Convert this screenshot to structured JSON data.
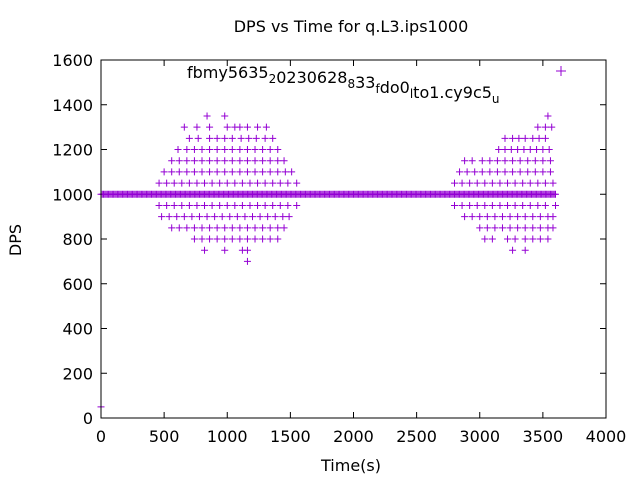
{
  "chart_data": {
    "type": "scatter",
    "title": "DPS vs Time for q.L3.ips1000",
    "xlabel": "Time(s)",
    "ylabel": "DPS",
    "xlim": [
      0,
      4000
    ],
    "ylim": [
      0,
      1600
    ],
    "xticks": [
      "0",
      "500",
      "1000",
      "1500",
      "2000",
      "2500",
      "3000",
      "3500",
      "4000"
    ],
    "yticks": [
      "0",
      "200",
      "400",
      "600",
      "800",
      "1000",
      "1200",
      "1400",
      "1600"
    ],
    "grid": false,
    "legend_position": "top-right",
    "marker": "+",
    "color": "#9400d3",
    "series": [
      {
        "name": "fbmy5635_20230628_8_33_fdo0_lto1.cy9c5_u",
        "legend_parts": [
          {
            "text": "fbmy5635",
            "sub": "2"
          },
          {
            "text": "0230628",
            "sub": "8"
          },
          {
            "text": "33",
            "sub": "f"
          },
          {
            "text": "do0",
            "sub": "l"
          },
          {
            "text": "to1.cy9c5",
            "sub": "u"
          }
        ],
        "baseline": {
          "y": 1000,
          "x_from": 0,
          "x_to": 3600,
          "step": 10
        },
        "points": [
          [
            0,
            50
          ],
          [
            840,
            1350
          ],
          [
            980,
            1350
          ],
          [
            660,
            1300
          ],
          [
            760,
            1300
          ],
          [
            860,
            1300
          ],
          [
            1000,
            1300
          ],
          [
            1060,
            1300
          ],
          [
            1100,
            1300
          ],
          [
            1160,
            1300
          ],
          [
            1240,
            1300
          ],
          [
            1310,
            1300
          ],
          [
            700,
            1250
          ],
          [
            770,
            1250
          ],
          [
            860,
            1250
          ],
          [
            920,
            1250
          ],
          [
            980,
            1250
          ],
          [
            1040,
            1250
          ],
          [
            1110,
            1250
          ],
          [
            1170,
            1250
          ],
          [
            1230,
            1250
          ],
          [
            1300,
            1250
          ],
          [
            1360,
            1250
          ],
          [
            610,
            1200
          ],
          [
            680,
            1200
          ],
          [
            740,
            1200
          ],
          [
            800,
            1200
          ],
          [
            860,
            1200
          ],
          [
            920,
            1200
          ],
          [
            980,
            1200
          ],
          [
            1040,
            1200
          ],
          [
            1100,
            1200
          ],
          [
            1160,
            1200
          ],
          [
            1220,
            1200
          ],
          [
            1280,
            1200
          ],
          [
            1340,
            1200
          ],
          [
            1400,
            1200
          ],
          [
            560,
            1150
          ],
          [
            620,
            1150
          ],
          [
            680,
            1150
          ],
          [
            740,
            1150
          ],
          [
            800,
            1150
          ],
          [
            860,
            1150
          ],
          [
            920,
            1150
          ],
          [
            980,
            1150
          ],
          [
            1040,
            1150
          ],
          [
            1100,
            1150
          ],
          [
            1160,
            1150
          ],
          [
            1220,
            1150
          ],
          [
            1280,
            1150
          ],
          [
            1340,
            1150
          ],
          [
            1400,
            1150
          ],
          [
            1450,
            1150
          ],
          [
            500,
            1100
          ],
          [
            560,
            1100
          ],
          [
            620,
            1100
          ],
          [
            680,
            1100
          ],
          [
            740,
            1100
          ],
          [
            800,
            1100
          ],
          [
            860,
            1100
          ],
          [
            920,
            1100
          ],
          [
            980,
            1100
          ],
          [
            1040,
            1100
          ],
          [
            1100,
            1100
          ],
          [
            1160,
            1100
          ],
          [
            1220,
            1100
          ],
          [
            1280,
            1100
          ],
          [
            1340,
            1100
          ],
          [
            1400,
            1100
          ],
          [
            1460,
            1100
          ],
          [
            1510,
            1100
          ],
          [
            460,
            1050
          ],
          [
            520,
            1050
          ],
          [
            580,
            1050
          ],
          [
            640,
            1050
          ],
          [
            700,
            1050
          ],
          [
            760,
            1050
          ],
          [
            820,
            1050
          ],
          [
            880,
            1050
          ],
          [
            940,
            1050
          ],
          [
            1000,
            1050
          ],
          [
            1060,
            1050
          ],
          [
            1120,
            1050
          ],
          [
            1180,
            1050
          ],
          [
            1240,
            1050
          ],
          [
            1300,
            1050
          ],
          [
            1360,
            1050
          ],
          [
            1420,
            1050
          ],
          [
            1480,
            1050
          ],
          [
            1550,
            1050
          ],
          [
            460,
            950
          ],
          [
            520,
            950
          ],
          [
            580,
            950
          ],
          [
            640,
            950
          ],
          [
            700,
            950
          ],
          [
            760,
            950
          ],
          [
            820,
            950
          ],
          [
            880,
            950
          ],
          [
            940,
            950
          ],
          [
            1000,
            950
          ],
          [
            1060,
            950
          ],
          [
            1120,
            950
          ],
          [
            1180,
            950
          ],
          [
            1240,
            950
          ],
          [
            1300,
            950
          ],
          [
            1360,
            950
          ],
          [
            1420,
            950
          ],
          [
            1480,
            950
          ],
          [
            1550,
            950
          ],
          [
            480,
            900
          ],
          [
            540,
            900
          ],
          [
            600,
            900
          ],
          [
            660,
            900
          ],
          [
            720,
            900
          ],
          [
            780,
            900
          ],
          [
            840,
            900
          ],
          [
            900,
            900
          ],
          [
            960,
            900
          ],
          [
            1020,
            900
          ],
          [
            1080,
            900
          ],
          [
            1140,
            900
          ],
          [
            1200,
            900
          ],
          [
            1260,
            900
          ],
          [
            1320,
            900
          ],
          [
            1380,
            900
          ],
          [
            1440,
            900
          ],
          [
            1490,
            900
          ],
          [
            560,
            850
          ],
          [
            620,
            850
          ],
          [
            680,
            850
          ],
          [
            740,
            850
          ],
          [
            800,
            850
          ],
          [
            860,
            850
          ],
          [
            920,
            850
          ],
          [
            980,
            850
          ],
          [
            1040,
            850
          ],
          [
            1100,
            850
          ],
          [
            1160,
            850
          ],
          [
            1220,
            850
          ],
          [
            1280,
            850
          ],
          [
            1340,
            850
          ],
          [
            1400,
            850
          ],
          [
            1450,
            850
          ],
          [
            740,
            800
          ],
          [
            800,
            800
          ],
          [
            860,
            800
          ],
          [
            920,
            800
          ],
          [
            980,
            800
          ],
          [
            1040,
            800
          ],
          [
            1100,
            800
          ],
          [
            1160,
            800
          ],
          [
            1220,
            800
          ],
          [
            1280,
            800
          ],
          [
            1340,
            800
          ],
          [
            1400,
            800
          ],
          [
            820,
            750
          ],
          [
            980,
            750
          ],
          [
            1120,
            750
          ],
          [
            1160,
            750
          ],
          [
            1160,
            700
          ],
          [
            3540,
            1350
          ],
          [
            3460,
            1300
          ],
          [
            3520,
            1300
          ],
          [
            3570,
            1300
          ],
          [
            3200,
            1250
          ],
          [
            3260,
            1250
          ],
          [
            3310,
            1250
          ],
          [
            3360,
            1250
          ],
          [
            3420,
            1250
          ],
          [
            3470,
            1250
          ],
          [
            3520,
            1250
          ],
          [
            3150,
            1200
          ],
          [
            3200,
            1200
          ],
          [
            3250,
            1200
          ],
          [
            3300,
            1200
          ],
          [
            3350,
            1200
          ],
          [
            3400,
            1200
          ],
          [
            3450,
            1200
          ],
          [
            3500,
            1200
          ],
          [
            3550,
            1200
          ],
          [
            2880,
            1150
          ],
          [
            2940,
            1150
          ],
          [
            3020,
            1150
          ],
          [
            3080,
            1150
          ],
          [
            3140,
            1150
          ],
          [
            3200,
            1150
          ],
          [
            3260,
            1150
          ],
          [
            3320,
            1150
          ],
          [
            3380,
            1150
          ],
          [
            3440,
            1150
          ],
          [
            3500,
            1150
          ],
          [
            3560,
            1150
          ],
          [
            2840,
            1100
          ],
          [
            2900,
            1100
          ],
          [
            2960,
            1100
          ],
          [
            3020,
            1100
          ],
          [
            3080,
            1100
          ],
          [
            3140,
            1100
          ],
          [
            3200,
            1100
          ],
          [
            3260,
            1100
          ],
          [
            3320,
            1100
          ],
          [
            3380,
            1100
          ],
          [
            3440,
            1100
          ],
          [
            3500,
            1100
          ],
          [
            3560,
            1100
          ],
          [
            2800,
            1050
          ],
          [
            2860,
            1050
          ],
          [
            2920,
            1050
          ],
          [
            2980,
            1050
          ],
          [
            3040,
            1050
          ],
          [
            3100,
            1050
          ],
          [
            3160,
            1050
          ],
          [
            3220,
            1050
          ],
          [
            3280,
            1050
          ],
          [
            3340,
            1050
          ],
          [
            3400,
            1050
          ],
          [
            3460,
            1050
          ],
          [
            3520,
            1050
          ],
          [
            3580,
            1050
          ],
          [
            2800,
            950
          ],
          [
            2860,
            950
          ],
          [
            2920,
            950
          ],
          [
            2980,
            950
          ],
          [
            3040,
            950
          ],
          [
            3100,
            950
          ],
          [
            3160,
            950
          ],
          [
            3220,
            950
          ],
          [
            3280,
            950
          ],
          [
            3340,
            950
          ],
          [
            3400,
            950
          ],
          [
            3460,
            950
          ],
          [
            3520,
            950
          ],
          [
            3600,
            950
          ],
          [
            2880,
            900
          ],
          [
            2940,
            900
          ],
          [
            3000,
            900
          ],
          [
            3060,
            900
          ],
          [
            3120,
            900
          ],
          [
            3180,
            900
          ],
          [
            3240,
            900
          ],
          [
            3300,
            900
          ],
          [
            3360,
            900
          ],
          [
            3420,
            900
          ],
          [
            3480,
            900
          ],
          [
            3540,
            900
          ],
          [
            3580,
            900
          ],
          [
            3000,
            850
          ],
          [
            3060,
            850
          ],
          [
            3120,
            850
          ],
          [
            3180,
            850
          ],
          [
            3240,
            850
          ],
          [
            3300,
            850
          ],
          [
            3360,
            850
          ],
          [
            3420,
            850
          ],
          [
            3480,
            850
          ],
          [
            3540,
            850
          ],
          [
            3580,
            850
          ],
          [
            3040,
            800
          ],
          [
            3100,
            800
          ],
          [
            3220,
            800
          ],
          [
            3280,
            800
          ],
          [
            3360,
            800
          ],
          [
            3420,
            800
          ],
          [
            3480,
            800
          ],
          [
            3540,
            800
          ],
          [
            3260,
            750
          ],
          [
            3360,
            750
          ]
        ]
      }
    ]
  }
}
